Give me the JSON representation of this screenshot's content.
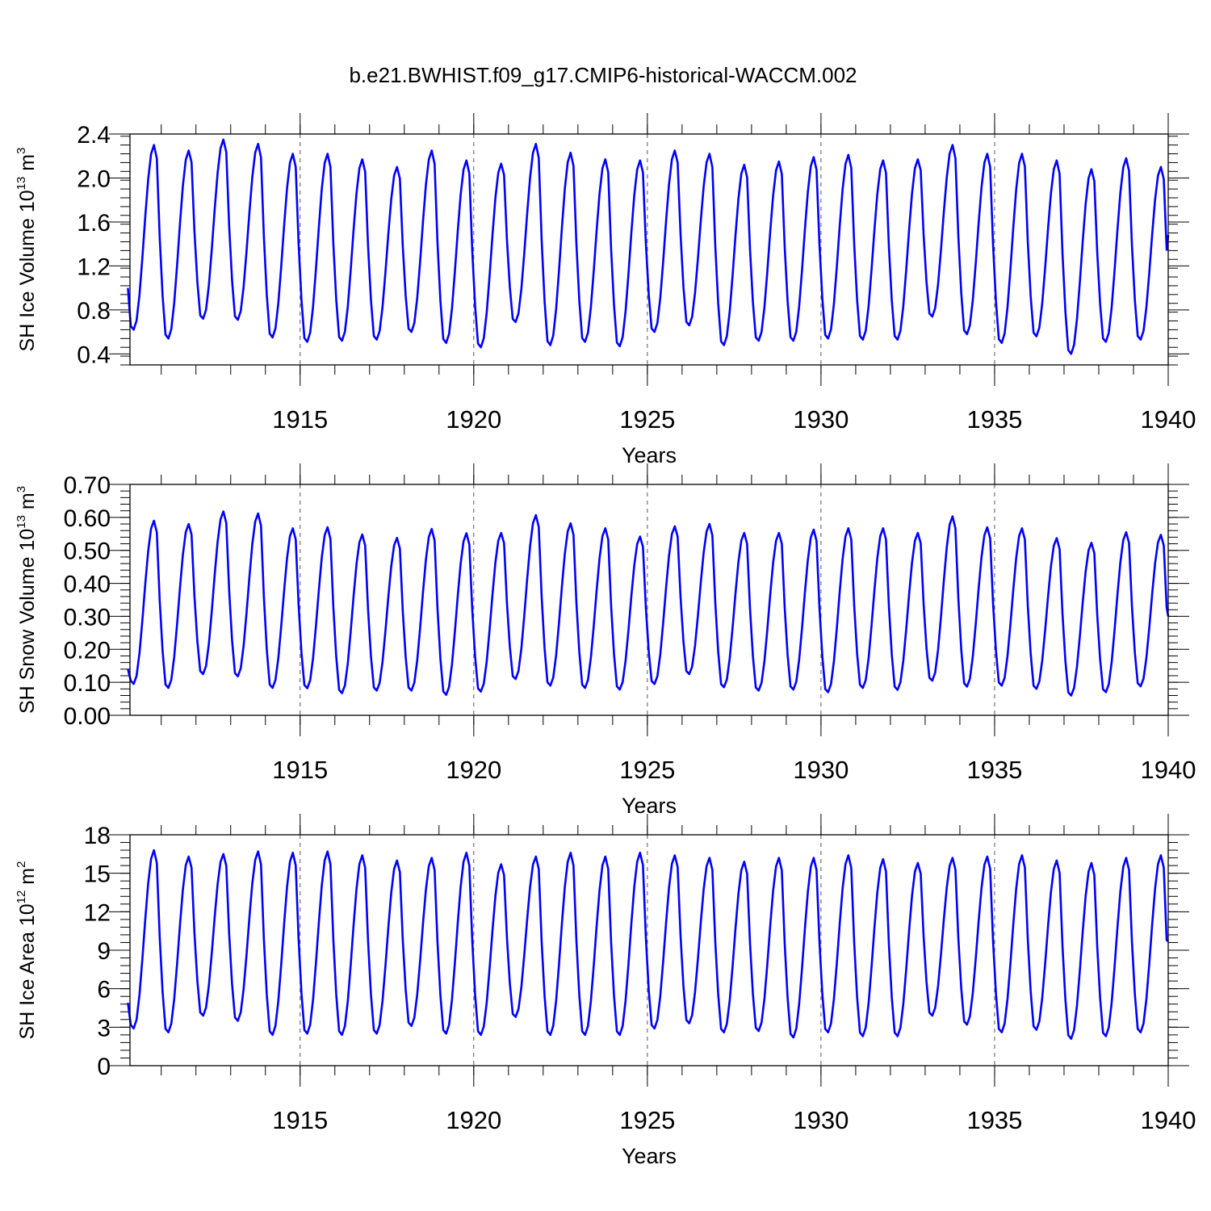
{
  "figure": {
    "title": "b.e21.BWHIST.f09_g17.CMIP6-historical-WACCM.002"
  },
  "chart_data": [
    {
      "type": "line",
      "title": "",
      "xlabel": "Years",
      "ylabel": "SH Ice Volume 10",
      "ylabel_exp": "13",
      "ylabel_unit": " m",
      "ylabel_unit_exp": "3",
      "xlim": [
        1910.1,
        1940.0
      ],
      "ylim": [
        0.3,
        2.4
      ],
      "yticks": [
        "0.4",
        "0.8",
        "1.2",
        "1.6",
        "2.0",
        "2.4"
      ],
      "ytick_values": [
        0.4,
        0.8,
        1.2,
        1.6,
        2.0,
        2.4
      ],
      "xticks": [
        "1915",
        "1920",
        "1925",
        "1930",
        "1935",
        "1940"
      ],
      "xtick_values": [
        1915,
        1920,
        1925,
        1930,
        1935,
        1940
      ],
      "reference_lines_x": [
        1915,
        1920,
        1925,
        1930,
        1935
      ],
      "series_color": "#0000ff",
      "x_start": 1910.04,
      "x_step": 0.08333,
      "annual_min": [
        0.62,
        0.54,
        0.72,
        0.71,
        0.55,
        0.51,
        0.52,
        0.53,
        0.6,
        0.5,
        0.46,
        0.69,
        0.48,
        0.51,
        0.47,
        0.6,
        0.66,
        0.48,
        0.52,
        0.52,
        0.54,
        0.53,
        0.53,
        0.74,
        0.58,
        0.5,
        0.56,
        0.4,
        0.51,
        0.53
      ],
      "annual_max": [
        2.3,
        2.25,
        2.35,
        2.31,
        2.22,
        2.22,
        2.17,
        2.1,
        2.25,
        2.16,
        2.13,
        2.31,
        2.23,
        2.17,
        2.16,
        2.25,
        2.22,
        2.12,
        2.15,
        2.19,
        2.21,
        2.16,
        2.17,
        2.3,
        2.22,
        2.22,
        2.16,
        2.08,
        2.18,
        2.1
      ],
      "start_value": 1.0,
      "end_value": 1.48
    },
    {
      "type": "line",
      "title": "",
      "xlabel": "Years",
      "ylabel": "SH Snow Volume 10",
      "ylabel_exp": "13",
      "ylabel_unit": " m",
      "ylabel_unit_exp": "3",
      "xlim": [
        1910.1,
        1940.0
      ],
      "ylim": [
        0.0,
        0.7
      ],
      "yticks": [
        "0.00",
        "0.10",
        "0.20",
        "0.30",
        "0.40",
        "0.50",
        "0.60",
        "0.70"
      ],
      "ytick_values": [
        0.0,
        0.1,
        0.2,
        0.3,
        0.4,
        0.5,
        0.6,
        0.7
      ],
      "xticks": [
        "1915",
        "1920",
        "1925",
        "1930",
        "1935",
        "1940"
      ],
      "xtick_values": [
        1915,
        1920,
        1925,
        1930,
        1935,
        1940
      ],
      "reference_lines_x": [
        1915,
        1920,
        1925,
        1930,
        1935
      ],
      "series_color": "#0000ff",
      "x_start": 1910.04,
      "x_step": 0.08333,
      "annual_min": [
        0.095,
        0.083,
        0.125,
        0.118,
        0.083,
        0.082,
        0.067,
        0.075,
        0.075,
        0.062,
        0.072,
        0.11,
        0.09,
        0.083,
        0.078,
        0.095,
        0.125,
        0.085,
        0.075,
        0.078,
        0.07,
        0.083,
        0.077,
        0.105,
        0.087,
        0.09,
        0.08,
        0.06,
        0.07,
        0.088
      ],
      "annual_max": [
        0.59,
        0.58,
        0.618,
        0.612,
        0.567,
        0.57,
        0.548,
        0.538,
        0.565,
        0.552,
        0.553,
        0.607,
        0.582,
        0.567,
        0.542,
        0.573,
        0.58,
        0.553,
        0.553,
        0.563,
        0.567,
        0.567,
        0.553,
        0.603,
        0.57,
        0.567,
        0.537,
        0.523,
        0.555,
        0.547
      ],
      "start_value": 0.14,
      "end_value": 0.3
    },
    {
      "type": "line",
      "title": "",
      "xlabel": "Years",
      "ylabel": "SH Ice Area 10",
      "ylabel_exp": "12",
      "ylabel_unit": " m",
      "ylabel_unit_exp": "2",
      "xlim": [
        1910.1,
        1940.0
      ],
      "ylim": [
        0,
        18
      ],
      "yticks": [
        "0",
        "3",
        "6",
        "9",
        "12",
        "15",
        "18"
      ],
      "ytick_values": [
        0,
        3,
        6,
        9,
        12,
        15,
        18
      ],
      "xticks": [
        "1915",
        "1920",
        "1925",
        "1930",
        "1935",
        "1940"
      ],
      "xtick_values": [
        1915,
        1920,
        1925,
        1930,
        1935,
        1940
      ],
      "reference_lines_x": [
        1915,
        1920,
        1925,
        1930,
        1935
      ],
      "series_color": "#0000ff",
      "x_start": 1910.04,
      "x_step": 0.08333,
      "annual_min": [
        2.9,
        2.6,
        3.9,
        3.5,
        2.4,
        2.5,
        2.4,
        2.5,
        3.1,
        2.5,
        2.4,
        3.8,
        2.4,
        2.4,
        2.4,
        2.9,
        3.3,
        2.6,
        2.7,
        2.2,
        2.6,
        2.3,
        2.3,
        3.9,
        3.2,
        2.6,
        2.8,
        2.1,
        2.3,
        2.6
      ],
      "annual_max": [
        16.8,
        16.3,
        16.5,
        16.7,
        16.6,
        16.7,
        16.4,
        16.0,
        16.2,
        16.6,
        15.7,
        16.3,
        16.6,
        16.3,
        16.6,
        16.4,
        16.2,
        15.9,
        16.2,
        16.2,
        16.4,
        16.1,
        15.8,
        16.2,
        16.3,
        16.4,
        16.0,
        15.8,
        16.2,
        16.4
      ],
      "start_value": 4.9,
      "end_value": 9.7
    }
  ]
}
